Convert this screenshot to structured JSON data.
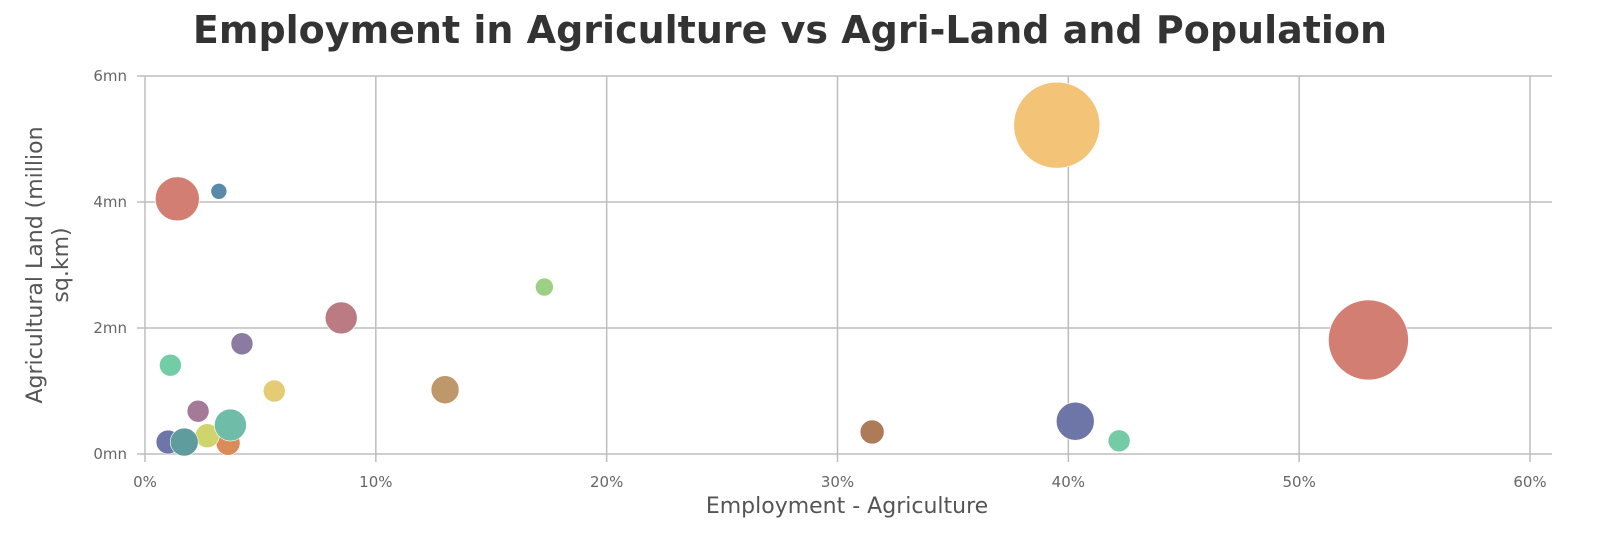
{
  "chart_data": {
    "type": "bubble",
    "title": "Employment in Agriculture vs Agri-Land and Population",
    "xlabel": "Employment - Agriculture",
    "ylabel": "Agricultural Land (million sq.km)",
    "xlim": [
      0,
      60
    ],
    "ylim": [
      0,
      6
    ],
    "x_ticks": [
      "0%",
      "10%",
      "20%",
      "30%",
      "40%",
      "50%",
      "60%"
    ],
    "y_ticks": [
      "0mn",
      "2mn",
      "4mn",
      "6mn"
    ],
    "grid": true,
    "legend": null,
    "points": [
      {
        "x": 39.5,
        "y": 5.22,
        "r": 43,
        "color": "#f3c378"
      },
      {
        "x": 53.0,
        "y": 1.81,
        "r": 40,
        "color": "#d27e72"
      },
      {
        "x": 1.4,
        "y": 4.05,
        "r": 22,
        "color": "#d27e72"
      },
      {
        "x": 3.2,
        "y": 4.17,
        "r": 8,
        "color": "#5a8aa8"
      },
      {
        "x": 8.5,
        "y": 2.16,
        "r": 16,
        "color": "#bb7b82"
      },
      {
        "x": 17.3,
        "y": 2.65,
        "r": 9,
        "color": "#9dd084"
      },
      {
        "x": 4.2,
        "y": 1.75,
        "r": 11,
        "color": "#8b7aa1"
      },
      {
        "x": 1.1,
        "y": 1.41,
        "r": 11,
        "color": "#72cda5"
      },
      {
        "x": 5.6,
        "y": 1.0,
        "r": 11,
        "color": "#e3cc74"
      },
      {
        "x": 13.0,
        "y": 1.02,
        "r": 14,
        "color": "#be976a"
      },
      {
        "x": 2.3,
        "y": 0.68,
        "r": 11,
        "color": "#a47a98"
      },
      {
        "x": 31.5,
        "y": 0.35,
        "r": 12,
        "color": "#ae7b59"
      },
      {
        "x": 40.3,
        "y": 0.52,
        "r": 19,
        "color": "#6e76a8"
      },
      {
        "x": 42.2,
        "y": 0.21,
        "r": 11,
        "color": "#75cba5"
      },
      {
        "x": 3.6,
        "y": 0.17,
        "r": 12,
        "color": "#d98b59"
      },
      {
        "x": 1.0,
        "y": 0.19,
        "r": 12,
        "color": "#6e76a8"
      },
      {
        "x": 2.7,
        "y": 0.29,
        "r": 12,
        "color": "#cfd46c"
      },
      {
        "x": 1.7,
        "y": 0.19,
        "r": 14,
        "color": "#5f9c9d"
      },
      {
        "x": 3.7,
        "y": 0.46,
        "r": 16,
        "color": "#6fbca8"
      }
    ]
  },
  "layout_colors": {
    "grid": "#bdbdbd",
    "title": "#333333",
    "tick_text": "#666666"
  }
}
